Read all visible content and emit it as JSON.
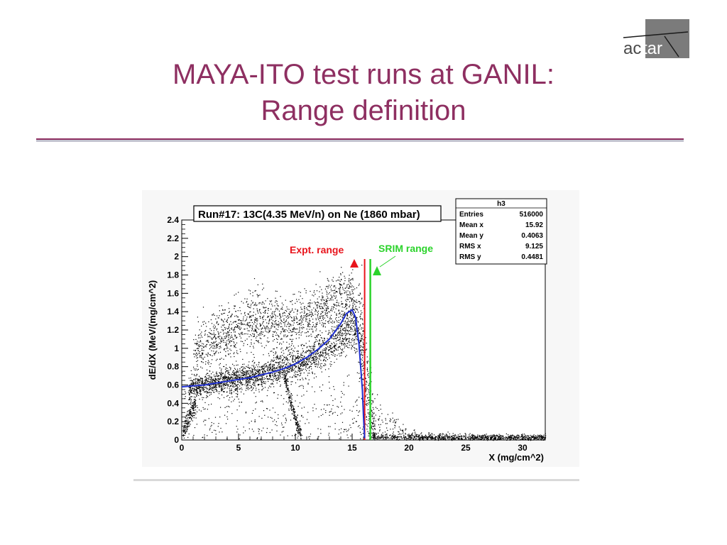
{
  "slide": {
    "title_line1": "MAYA-ITO test runs at GANIL:",
    "title_line2": "Range definition",
    "logo_text_dark": "ac",
    "logo_text_light": "tar",
    "colors": {
      "title": "#8e2f61",
      "rule": "#8e2f61"
    }
  },
  "chart_data": {
    "type": "scatter",
    "title": "Run#17: 13C(4.35 MeV/n) on Ne (1860 mbar)",
    "xlabel": "X (mg/cm^2)",
    "ylabel": "dE/dX (MeV/(mg/cm^2)",
    "xlim": [
      0,
      32
    ],
    "ylim": [
      0,
      2.4
    ],
    "x_ticks": [
      "0",
      "5",
      "10",
      "15",
      "20",
      "25",
      "30"
    ],
    "y_ticks": [
      "0",
      "0.2",
      "0.4",
      "0.6",
      "0.8",
      "1",
      "1.2",
      "1.4",
      "1.6",
      "1.8",
      "2",
      "2.2",
      "2.4"
    ],
    "stats_box": {
      "name": "h3",
      "rows": [
        {
          "label": "Entries",
          "value": "516000"
        },
        {
          "label": "Mean x",
          "value": "15.92"
        },
        {
          "label": "Mean y",
          "value": "0.4063"
        },
        {
          "label": "RMS x",
          "value": "9.125"
        },
        {
          "label": "RMS y",
          "value": "0.4481"
        }
      ]
    },
    "annotations": {
      "expt_label": "Expt. range",
      "srim_label": "SRIM range",
      "expt_x": 16.1,
      "srim_x": 16.6,
      "expt_color": "#e8141c",
      "srim_color": "#2bd32b"
    },
    "fit_curve": {
      "color": "#1f2fd0",
      "x": [
        0,
        1,
        2,
        3,
        4,
        5,
        6,
        7,
        8,
        9,
        10,
        11,
        12,
        13,
        14,
        14.5,
        15,
        15.3,
        15.6,
        15.9,
        16.0,
        16.1
      ],
      "y": [
        0.58,
        0.59,
        0.6,
        0.62,
        0.64,
        0.66,
        0.68,
        0.71,
        0.74,
        0.78,
        0.83,
        0.9,
        0.99,
        1.1,
        1.27,
        1.38,
        1.42,
        1.34,
        1.05,
        0.55,
        0.25,
        0.02
      ]
    },
    "density_bands": [
      {
        "name": "main-band",
        "x": [
          0.6,
          1,
          2,
          3,
          4,
          5,
          6,
          7,
          8,
          9,
          10,
          11,
          12,
          13,
          14,
          15,
          15.5,
          16,
          16.5,
          17
        ],
        "y_center": [
          0.55,
          0.57,
          0.6,
          0.62,
          0.65,
          0.67,
          0.7,
          0.73,
          0.76,
          0.79,
          0.83,
          0.88,
          0.95,
          1.04,
          1.16,
          1.28,
          1.2,
          0.9,
          0.4,
          0.08
        ],
        "spread": [
          0.05,
          0.06,
          0.06,
          0.06,
          0.07,
          0.07,
          0.07,
          0.08,
          0.08,
          0.08,
          0.09,
          0.09,
          0.1,
          0.1,
          0.12,
          0.15,
          0.2,
          0.3,
          0.25,
          0.06
        ],
        "count": 2600
      },
      {
        "name": "upper-halo",
        "x": [
          1,
          3,
          5,
          7,
          8,
          9,
          10,
          11,
          12,
          13,
          14,
          15,
          16
        ],
        "y_center": [
          0.95,
          1.1,
          1.25,
          1.35,
          1.3,
          1.25,
          1.3,
          1.35,
          1.4,
          1.5,
          1.6,
          1.55,
          1.0
        ],
        "spread": [
          0.15,
          0.15,
          0.15,
          0.15,
          0.15,
          0.15,
          0.14,
          0.14,
          0.14,
          0.14,
          0.14,
          0.18,
          0.4
        ],
        "count": 1600
      },
      {
        "name": "secondary-branch",
        "x": [
          9,
          9.3,
          9.6,
          9.9,
          10.2,
          10.5
        ],
        "y_center": [
          0.7,
          0.55,
          0.4,
          0.28,
          0.15,
          0.05
        ],
        "spread": [
          0.04,
          0.04,
          0.04,
          0.04,
          0.04,
          0.04
        ],
        "count": 220
      },
      {
        "name": "low-noise",
        "x": [
          0,
          5,
          10,
          15,
          20,
          25,
          30,
          32
        ],
        "y_center": [
          0.3,
          0.3,
          0.3,
          0.3,
          0.05,
          0.03,
          0.03,
          0.03
        ],
        "spread": [
          0.25,
          0.25,
          0.25,
          0.25,
          0.03,
          0.02,
          0.02,
          0.02
        ],
        "count": 900
      },
      {
        "name": "tail-floor",
        "x": [
          16.5,
          20,
          24,
          28,
          32
        ],
        "y_center": [
          0.04,
          0.03,
          0.03,
          0.03,
          0.03
        ],
        "spread": [
          0.02,
          0.015,
          0.015,
          0.015,
          0.015
        ],
        "count": 700
      },
      {
        "name": "start-cluster",
        "x": [
          0.1,
          0.4,
          0.8,
          1.2
        ],
        "y_center": [
          0.1,
          0.2,
          0.32,
          0.38
        ],
        "spread": [
          0.05,
          0.06,
          0.06,
          0.05
        ],
        "count": 180
      }
    ]
  }
}
